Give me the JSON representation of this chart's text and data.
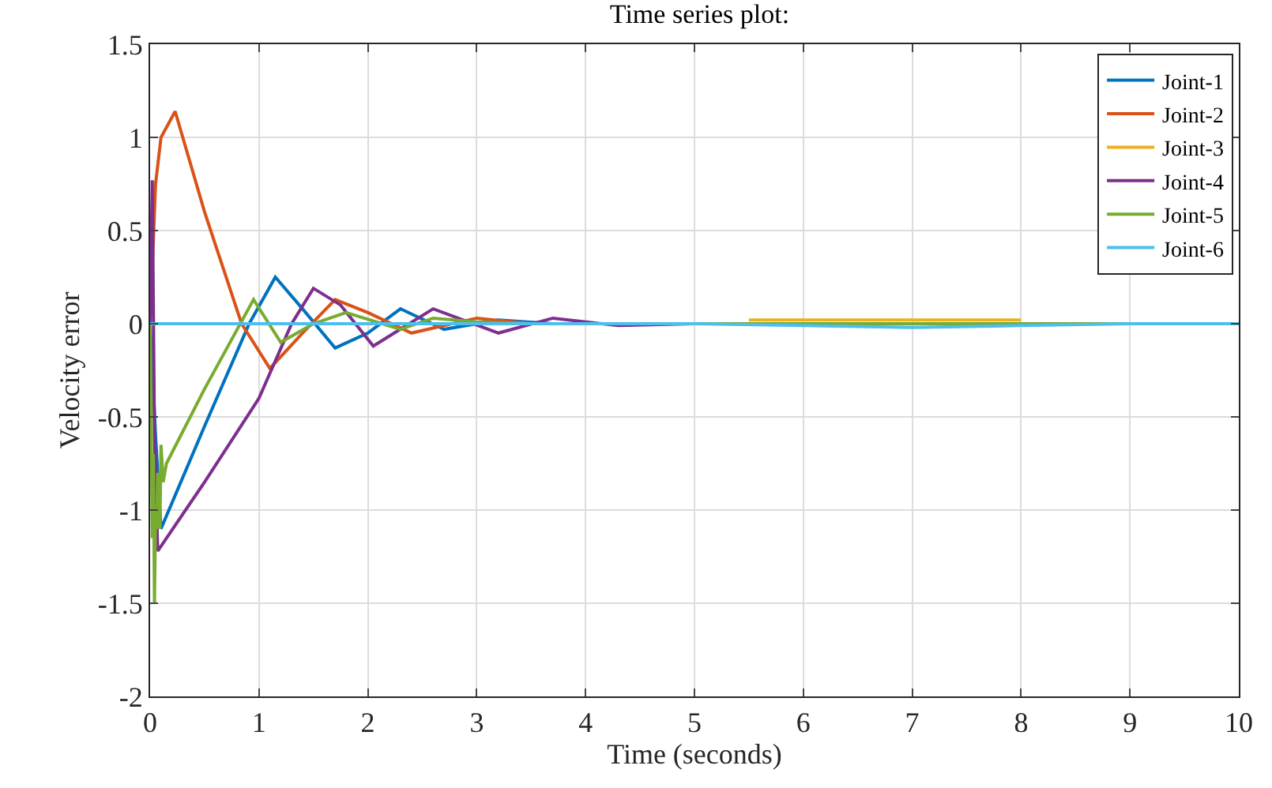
{
  "chart_data": {
    "type": "line",
    "title": "Time series plot:",
    "xlabel": "Time (seconds)",
    "ylabel": "Velocity error",
    "xlim": [
      0,
      10
    ],
    "ylim": [
      -2,
      1.5
    ],
    "xticks": [
      0,
      1,
      2,
      3,
      4,
      5,
      6,
      7,
      8,
      9,
      10
    ],
    "yticks": [
      -2,
      -1.5,
      -1,
      -0.5,
      0,
      0.5,
      1,
      1.5
    ],
    "grid": true,
    "legend": "top right",
    "line_style": "solid",
    "series": [
      {
        "name": "Joint-1",
        "color": "#0072bd",
        "x": [
          0,
          0.05,
          0.1,
          0.5,
          0.91,
          1.15,
          1.4,
          1.7,
          2.0,
          2.3,
          2.7,
          3.2,
          3.7
        ],
        "values": [
          0,
          -0.6,
          -1.1,
          -0.55,
          0,
          0.25,
          0.08,
          -0.13,
          -0.05,
          0.08,
          -0.03,
          0.02,
          0
        ]
      },
      {
        "name": "Joint-2",
        "color": "#d95319",
        "x": [
          0,
          0.05,
          0.1,
          0.23,
          0.5,
          0.84,
          1.1,
          1.4,
          1.7,
          2.0,
          2.4,
          3.0,
          3.5
        ],
        "values": [
          0,
          0.75,
          1.0,
          1.14,
          0.6,
          0,
          -0.24,
          -0.05,
          0.13,
          0.06,
          -0.05,
          0.03,
          0
        ]
      },
      {
        "name": "Joint-3",
        "color": "#edb120",
        "x": [
          5.5,
          6,
          7,
          8
        ],
        "values": [
          0.02,
          0.02,
          0.02,
          0.02
        ]
      },
      {
        "name": "Joint-4",
        "color": "#7e2f8e",
        "x": [
          0,
          0.01,
          0.02,
          0.04,
          0.07,
          0.5,
          1.0,
          1.3,
          1.5,
          1.75,
          2.05,
          2.6,
          3.2,
          3.7,
          4.3,
          5,
          10
        ],
        "values": [
          0,
          0.4,
          0.77,
          -0.6,
          -1.22,
          -0.85,
          -0.4,
          0,
          0.19,
          0.1,
          -0.12,
          0.08,
          -0.05,
          0.03,
          -0.01,
          0,
          0
        ]
      },
      {
        "name": "Joint-5",
        "color": "#77ac30",
        "x": [
          0,
          0.01,
          0.02,
          0.03,
          0.04,
          0.05,
          0.06,
          0.07,
          0.09,
          0.1,
          0.12,
          0.15,
          0.5,
          0.95,
          1.2,
          1.5,
          1.8,
          2.3,
          2.6,
          3.0,
          3.5,
          10
        ],
        "values": [
          0,
          -0.5,
          -1.15,
          -0.7,
          -1.5,
          -1.0,
          -1.1,
          -0.8,
          -1.1,
          -0.65,
          -0.85,
          -0.75,
          -0.35,
          0.13,
          -0.1,
          0.0,
          0.06,
          -0.03,
          0.03,
          0.01,
          0,
          0
        ]
      },
      {
        "name": "Joint-6",
        "color": "#4dbeee",
        "x": [
          0,
          4,
          5,
          6,
          7,
          8,
          9,
          10
        ],
        "values": [
          0,
          0,
          0,
          -0.01,
          -0.02,
          -0.01,
          0,
          0
        ]
      }
    ]
  }
}
